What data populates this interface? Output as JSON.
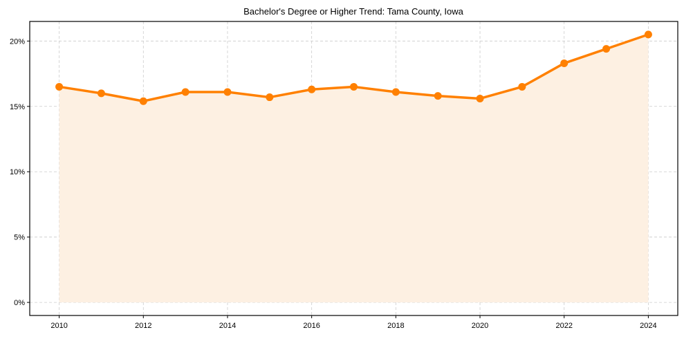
{
  "chart_data": {
    "type": "line",
    "title": "Bachelor's Degree or Higher Trend: Tama County, Iowa",
    "xlabel": "",
    "ylabel": "",
    "x": [
      2010,
      2011,
      2012,
      2013,
      2014,
      2015,
      2016,
      2017,
      2018,
      2019,
      2020,
      2021,
      2022,
      2023,
      2024
    ],
    "series": [
      {
        "name": "Bachelor's Degree or Higher",
        "values": [
          16.5,
          16.0,
          15.4,
          16.1,
          16.1,
          15.7,
          16.3,
          16.5,
          16.1,
          15.8,
          15.6,
          16.5,
          18.3,
          19.4,
          20.5
        ],
        "color": "#ff8000",
        "fill": "#fdf0e2",
        "markers": true
      }
    ],
    "xticks": [
      2010,
      2012,
      2014,
      2016,
      2018,
      2020,
      2022,
      2024
    ],
    "xtick_labels": [
      "2010",
      "2012",
      "2014",
      "2016",
      "2018",
      "2020",
      "2022",
      "2024"
    ],
    "yticks": [
      0,
      5,
      10,
      15,
      20
    ],
    "ytick_labels": [
      "0%",
      "5%",
      "10%",
      "15%",
      "20%"
    ],
    "xlim": [
      2009.3,
      2024.7
    ],
    "ylim": [
      -1.0,
      21.5
    ],
    "grid": true,
    "legend": null
  }
}
